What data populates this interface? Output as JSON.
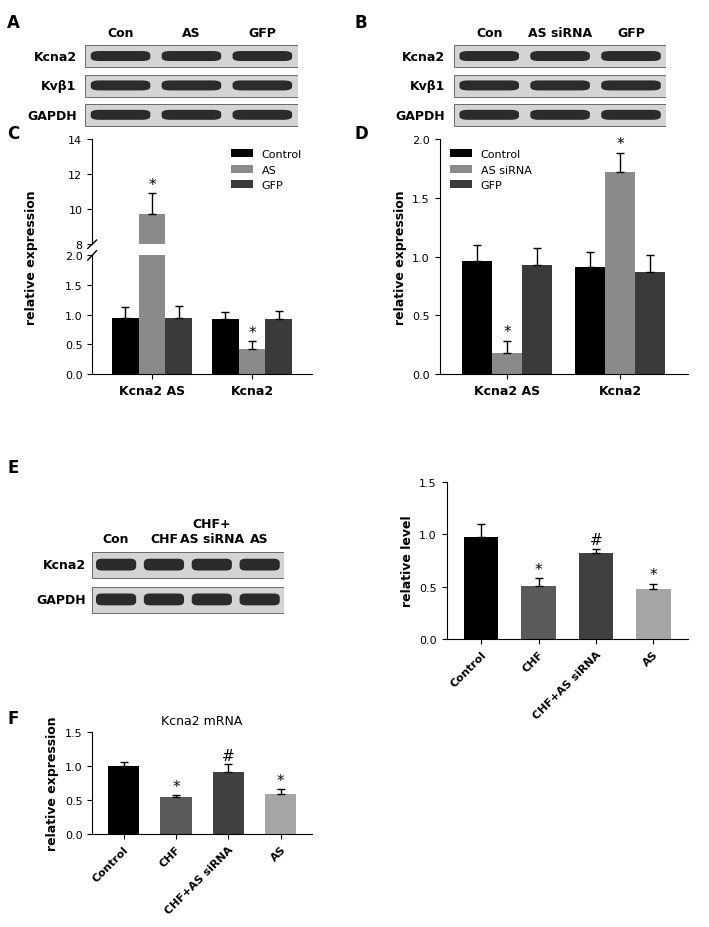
{
  "chart_data": [
    {
      "panel": "C",
      "type": "bar",
      "ylabel": "relative expression",
      "categories": [
        "Kcna2 AS",
        "Kcna2"
      ],
      "series": [
        {
          "name": "Control",
          "color": "#000000",
          "values": [
            0.95,
            0.92
          ],
          "errors": [
            0.18,
            0.13
          ],
          "sig_marks": [
            null,
            null
          ]
        },
        {
          "name": "AS",
          "color": "#8a8a8a",
          "values": [
            9.7,
            0.42
          ],
          "errors": [
            1.2,
            0.13
          ],
          "sig_marks": [
            "*",
            "*"
          ]
        },
        {
          "name": "GFP",
          "color": "#3a3a3a",
          "values": [
            0.95,
            0.92
          ],
          "errors": [
            0.2,
            0.14
          ],
          "sig_marks": [
            null,
            null
          ]
        }
      ],
      "segments": [
        {
          "ylim": [
            0,
            2.0
          ],
          "yticks": [
            {
              "value": 0,
              "label": "0.0"
            },
            {
              "value": 0.5,
              "label": "0.5"
            },
            {
              "value": 1.0,
              "label": "1.0"
            },
            {
              "value": 1.5,
              "label": "1.5"
            },
            {
              "value": 2.0,
              "label": "2.0"
            }
          ]
        },
        {
          "ylim": [
            8,
            14
          ],
          "yticks": [
            8,
            10,
            12,
            14
          ]
        }
      ],
      "legend": "upper right"
    },
    {
      "panel": "D",
      "type": "bar",
      "ylabel": "relative expression",
      "categories": [
        "Kcna2 AS",
        "Kcna2"
      ],
      "series": [
        {
          "name": "Control",
          "color": "#000000",
          "values": [
            0.96,
            0.91
          ],
          "errors": [
            0.14,
            0.13
          ],
          "sig_marks": [
            null,
            null
          ]
        },
        {
          "name": "AS siRNA",
          "color": "#8a8a8a",
          "values": [
            0.18,
            1.72
          ],
          "errors": [
            0.1,
            0.16
          ],
          "sig_marks": [
            "*",
            "*"
          ]
        },
        {
          "name": "GFP",
          "color": "#3a3a3a",
          "values": [
            0.93,
            0.87
          ],
          "errors": [
            0.14,
            0.14
          ],
          "sig_marks": [
            null,
            null
          ]
        }
      ],
      "ylim": [
        0,
        2.0
      ],
      "yticks": [
        {
          "value": 0,
          "label": "0.0"
        },
        {
          "value": 0.5,
          "label": "0.5"
        },
        {
          "value": 1.0,
          "label": "1.0"
        },
        {
          "value": 1.5,
          "label": "1.5"
        },
        {
          "value": 2.0,
          "label": "2.0"
        }
      ],
      "legend": "upper left"
    },
    {
      "type": "bar",
      "ylabel": "relative level",
      "categories": [
        "Control",
        "CHF",
        "CHF+AS siRNA",
        "AS"
      ],
      "values": [
        0.97,
        0.51,
        0.82,
        0.48
      ],
      "errors": [
        0.13,
        0.07,
        0.04,
        0.05
      ],
      "sig_marks": [
        null,
        "*",
        "#",
        "*"
      ],
      "colors": [
        "#000000",
        "#5a5a5a",
        "#404040",
        "#a6a6a6"
      ],
      "ylim": [
        0,
        1.5
      ],
      "yticks": [
        {
          "value": 0,
          "label": "0.0"
        },
        {
          "value": 0.5,
          "label": "0.5"
        },
        {
          "value": 1.0,
          "label": "1.0"
        },
        {
          "value": 1.5,
          "label": "1.5"
        }
      ]
    },
    {
      "panel": "F",
      "type": "bar",
      "title": "Kcna2 mRNA",
      "ylabel": "relative expression",
      "categories": [
        "Control",
        "CHF",
        "CHF+AS siRNA",
        "AS"
      ],
      "values": [
        1.0,
        0.54,
        0.91,
        0.59
      ],
      "errors": [
        0.06,
        0.04,
        0.12,
        0.08
      ],
      "sig_marks": [
        null,
        "*",
        "#",
        "*"
      ],
      "colors": [
        "#000000",
        "#5a5a5a",
        "#404040",
        "#a6a6a6"
      ],
      "ylim": [
        0,
        1.5
      ],
      "yticks": [
        {
          "value": 0,
          "label": "0.0"
        },
        {
          "value": 0.5,
          "label": "0.5"
        },
        {
          "value": 1.0,
          "label": "1.0"
        },
        {
          "value": 1.5,
          "label": "1.5"
        }
      ]
    }
  ],
  "blots": [
    {
      "panel": "A",
      "lanes": [
        "Con",
        "AS",
        "GFP"
      ],
      "rows": [
        "Kcna2",
        "Kvβ1",
        "GAPDH"
      ]
    },
    {
      "panel": "B",
      "lanes": [
        "Con",
        "AS siRNA",
        "GFP"
      ],
      "rows": [
        "Kcna2",
        "Kvβ1",
        "GAPDH"
      ]
    },
    {
      "panel": "E",
      "lanes": [
        "Con",
        "CHF",
        "CHF+\nAS siRNA",
        "AS"
      ],
      "rows": [
        "Kcna2",
        "GAPDH"
      ]
    }
  ]
}
